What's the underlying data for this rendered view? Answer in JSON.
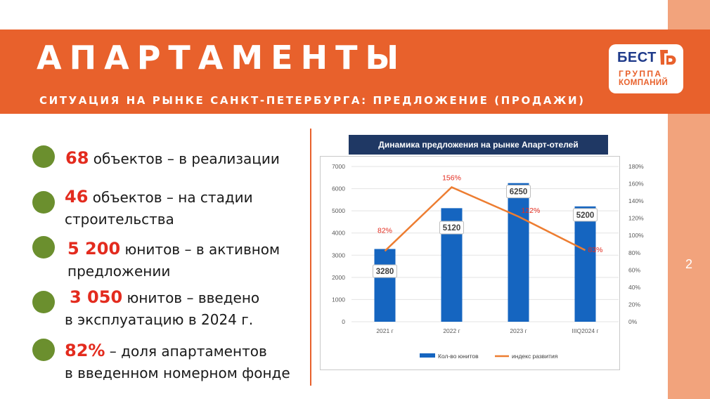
{
  "header": {
    "title": "АПАРТАМЕНТЫ",
    "subtitle": "СИТУАЦИЯ НА РЫНКЕ САНКТ-ПЕТЕРБУРГА: ПРЕДЛОЖЕНИЕ (ПРОДАЖИ)"
  },
  "logo": {
    "line1": "БЕСТ",
    "line2": "ГРУППА",
    "line3": "КОМПАНИЙ"
  },
  "page_number": "2",
  "facts": [
    {
      "num": "68",
      "line1": " объектов – в реализации",
      "line2": ""
    },
    {
      "num": "46",
      "line1": " объектов – на стадии",
      "line2": "строительства"
    },
    {
      "num": "5 200",
      "line1": " юнитов – в активном",
      "line2": "предложении"
    },
    {
      "num": "3 050",
      "line1": " юнитов – введено",
      "line2": "в эксплуатацию в 2024 г."
    },
    {
      "num": "82%",
      "line1": " – доля апартаментов",
      "line2": "в введенном номерном фонде"
    }
  ],
  "colors": {
    "accent": "#e8612c",
    "bar": "#1565c0",
    "line": "#ed7d31",
    "highlight": "#e32b1e",
    "bullet": "#6b8f2e",
    "chart_title_bg": "#1f3864"
  },
  "chart_data": {
    "type": "bar",
    "title": "Динамика предложения на рынке Апарт-отелей",
    "categories": [
      "2021 г",
      "2022 г",
      "2023 г",
      "IIIQ2024 г"
    ],
    "series": [
      {
        "name": "Кол-во юнитов",
        "type": "bar",
        "axis": "left",
        "values": [
          3280,
          5120,
          6250,
          5200
        ]
      },
      {
        "name": "индекс развития",
        "type": "line",
        "axis": "right",
        "values": [
          82,
          156,
          122,
          83
        ]
      }
    ],
    "bar_labels": [
      "3280",
      "5120",
      "6250",
      "5200"
    ],
    "line_labels": [
      "82%",
      "156%",
      "122%",
      "83%"
    ],
    "ylim_left": [
      0,
      7000
    ],
    "y_ticks_left": [
      "0",
      "1000",
      "2000",
      "3000",
      "4000",
      "5000",
      "6000",
      "7000"
    ],
    "ylim_right": [
      0,
      180
    ],
    "y_ticks_right": [
      "0%",
      "20%",
      "40%",
      "60%",
      "80%",
      "100%",
      "120%",
      "140%",
      "160%",
      "180%"
    ],
    "legend": [
      "Кол-во юнитов",
      "индекс развития"
    ],
    "legend_position": "bottom"
  }
}
